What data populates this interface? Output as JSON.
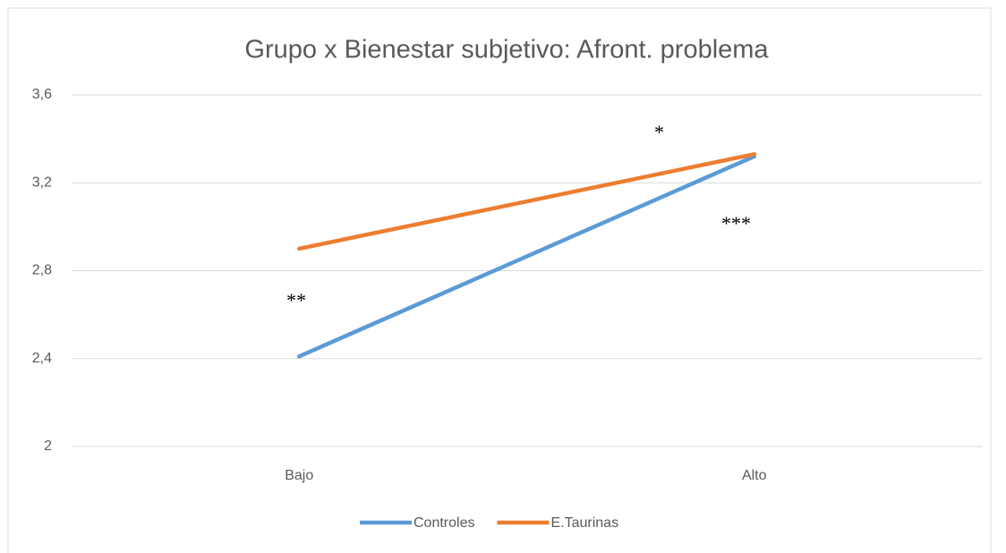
{
  "chart_data": {
    "type": "line",
    "title": "Grupo x Bienestar subjetivo: Afront. problema",
    "categories": [
      "Bajo",
      "Alto"
    ],
    "series": [
      {
        "name": "Controles",
        "color": "#5b9bd5",
        "values": [
          2.41,
          3.32
        ]
      },
      {
        "name": "E.Taurinas",
        "color": "#ed7d31",
        "values": [
          2.9,
          3.33
        ]
      }
    ],
    "ylim": [
      2,
      3.6
    ],
    "yticks": [
      2,
      {
        "value": 2.4,
        "label": "2,4"
      },
      {
        "value": 2.8,
        "label": "2,8"
      },
      {
        "value": 3.2,
        "label": "3,2"
      },
      {
        "value": 3.6,
        "label": "3,6"
      }
    ],
    "grid": true,
    "legend": "bottom",
    "annotations": [
      "**",
      "*",
      "***"
    ]
  }
}
